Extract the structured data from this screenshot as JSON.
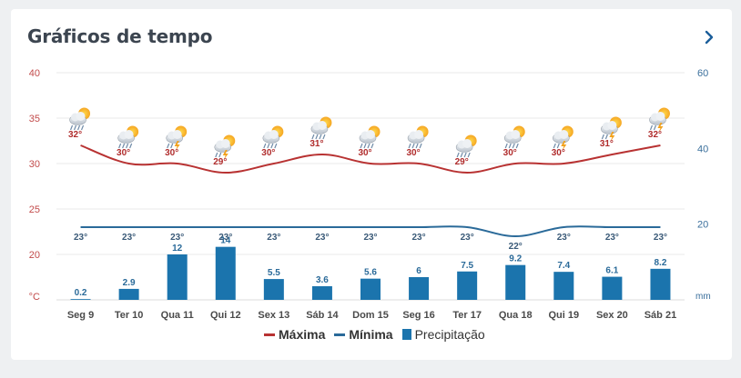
{
  "card": {
    "title": "Gráficos de tempo",
    "nav_icon": "chevron-right-icon"
  },
  "colors": {
    "max": "#b83232",
    "min": "#2a6a99",
    "precip": "#1b74ad",
    "max_label": "#b02c2c",
    "min_label": "#3a5a78",
    "precip_label": "#2a6a99",
    "axis_left": "#c24b4b",
    "axis_right": "#3a6f9c",
    "grid": "#e8e8e8"
  },
  "legend": {
    "max": "Máxima",
    "min": "Mínima",
    "precip": "Precipitação"
  },
  "chart_data": {
    "type": "combo",
    "categories": [
      "Seg 9",
      "Ter 10",
      "Qua 11",
      "Qui 12",
      "Sex 13",
      "Sáb 14",
      "Dom 15",
      "Seg 16",
      "Ter 17",
      "Qua 18",
      "Qui 19",
      "Sex 20",
      "Sáb 21"
    ],
    "series": [
      {
        "name": "Máxima",
        "type": "line",
        "axis": "left",
        "values": [
          32,
          30,
          30,
          29,
          30,
          31,
          30,
          30,
          29,
          30,
          30,
          31,
          32
        ],
        "labels": [
          "32°",
          "30°",
          "30°",
          "29°",
          "30°",
          "31°",
          "30°",
          "30°",
          "29°",
          "30°",
          "30°",
          "31°",
          "32°"
        ]
      },
      {
        "name": "Mínima",
        "type": "line",
        "axis": "left",
        "values": [
          23,
          23,
          23,
          23,
          23,
          23,
          23,
          23,
          23,
          22,
          23,
          23,
          23
        ],
        "labels": [
          "23°",
          "23°",
          "23°",
          "23°",
          "23°",
          "23°",
          "23°",
          "23°",
          "23°",
          "22°",
          "23°",
          "23°",
          "23°"
        ]
      },
      {
        "name": "Precipitação",
        "type": "bar",
        "axis": "right",
        "values": [
          0.2,
          2.9,
          12,
          14,
          5.5,
          3.6,
          5.6,
          6,
          7.5,
          9.2,
          7.4,
          6.1,
          8.2
        ],
        "labels": [
          "0.2",
          "2.9",
          "12",
          "14",
          "5.5",
          "3.6",
          "5.6",
          "6",
          "7.5",
          "9.2",
          "7.4",
          "6.1",
          "8.2"
        ]
      }
    ],
    "weather_icons": [
      "rain",
      "rain",
      "storm",
      "storm",
      "rain",
      "rain",
      "rain",
      "rain",
      "rain",
      "rain",
      "storm",
      "storm",
      "storm"
    ],
    "left_axis": {
      "unit": "°C",
      "ticks": [
        "40",
        "35",
        "30",
        "25",
        "20"
      ],
      "range": [
        15,
        40
      ]
    },
    "right_axis": {
      "unit": "mm",
      "ticks": [
        "60",
        "40",
        "20"
      ],
      "range": [
        0,
        60
      ]
    }
  }
}
